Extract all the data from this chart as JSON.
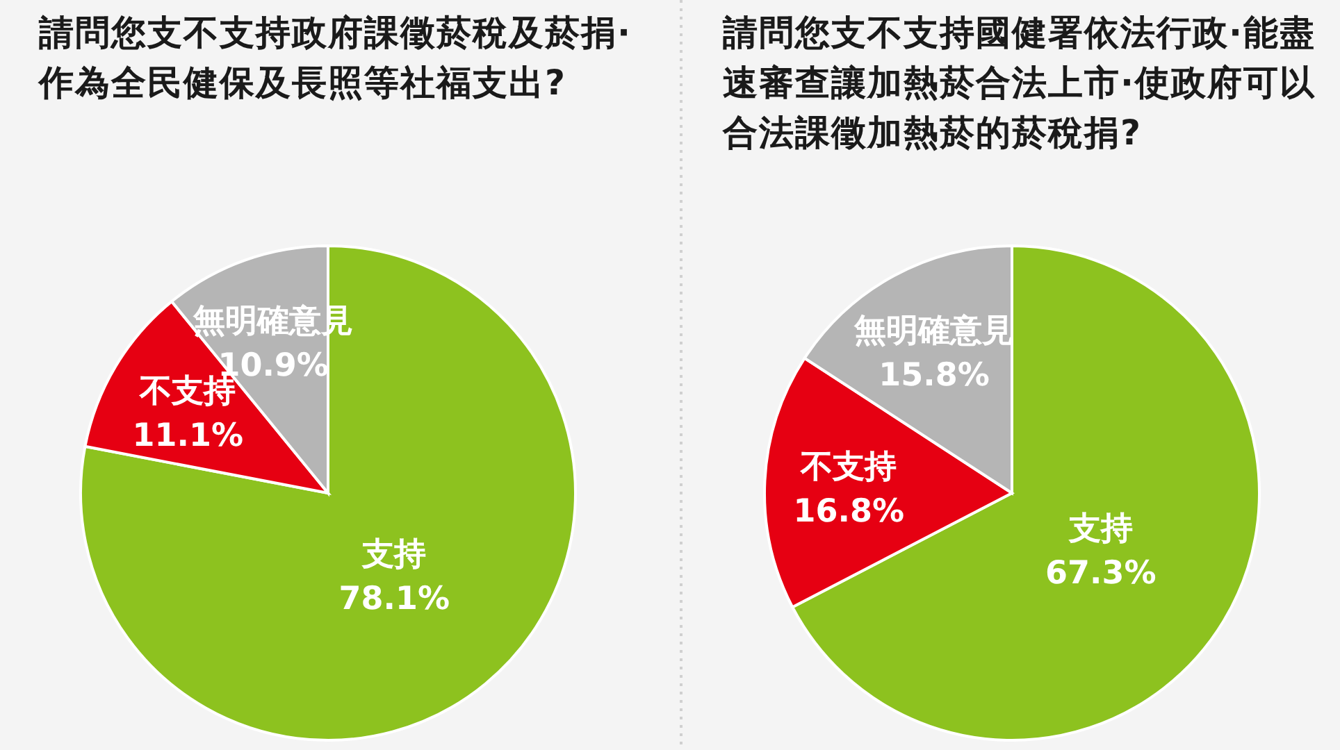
{
  "chart_data": [
    {
      "type": "pie",
      "title": "請問您支不支持政府課徵菸稅及菸捐·作為全民健保及長照等社福支出?",
      "categories": [
        "支持",
        "不支持",
        "無明確意見"
      ],
      "values": [
        78.1,
        11.1,
        10.9
      ],
      "value_labels": [
        "78.1%",
        "11.1%",
        "10.9%"
      ],
      "colors": [
        "#8dc21f",
        "#e60012",
        "#b5b5b5"
      ]
    },
    {
      "type": "pie",
      "title": "請問您支不支持國健署依法行政·能盡速審查讓加熱菸合法上市·使政府可以合法課徵加熱菸的菸稅捐?",
      "categories": [
        "支持",
        "不支持",
        "無明確意見"
      ],
      "values": [
        67.3,
        16.8,
        15.8
      ],
      "value_labels": [
        "67.3%",
        "16.8%",
        "15.8%"
      ],
      "colors": [
        "#8dc21f",
        "#e60012",
        "#b5b5b5"
      ]
    }
  ]
}
